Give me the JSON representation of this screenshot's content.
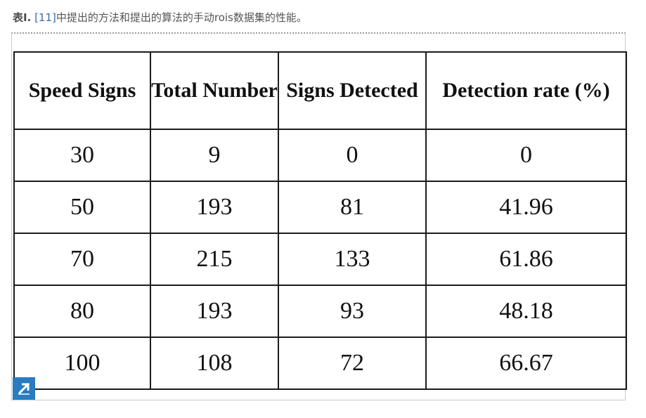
{
  "caption": {
    "label": "表I.",
    "ref": "[11]",
    "text": "中提出的方法和提出的算法的手动rois数据集的性能。"
  },
  "table": {
    "headers": [
      "Speed Signs",
      "Total Number",
      "Signs Detected",
      "Detection rate (%)"
    ],
    "rows": [
      [
        "30",
        "9",
        "0",
        "0"
      ],
      [
        "50",
        "193",
        "81",
        "41.96"
      ],
      [
        "70",
        "215",
        "133",
        "61.86"
      ],
      [
        "80",
        "193",
        "93",
        "48.18"
      ],
      [
        "100",
        "108",
        "72",
        "66.67"
      ]
    ]
  },
  "expand_icon": "expand-arrow-icon",
  "colors": {
    "expand_button": "#2a7bbf",
    "caption_ref": "#3a6aa8"
  }
}
